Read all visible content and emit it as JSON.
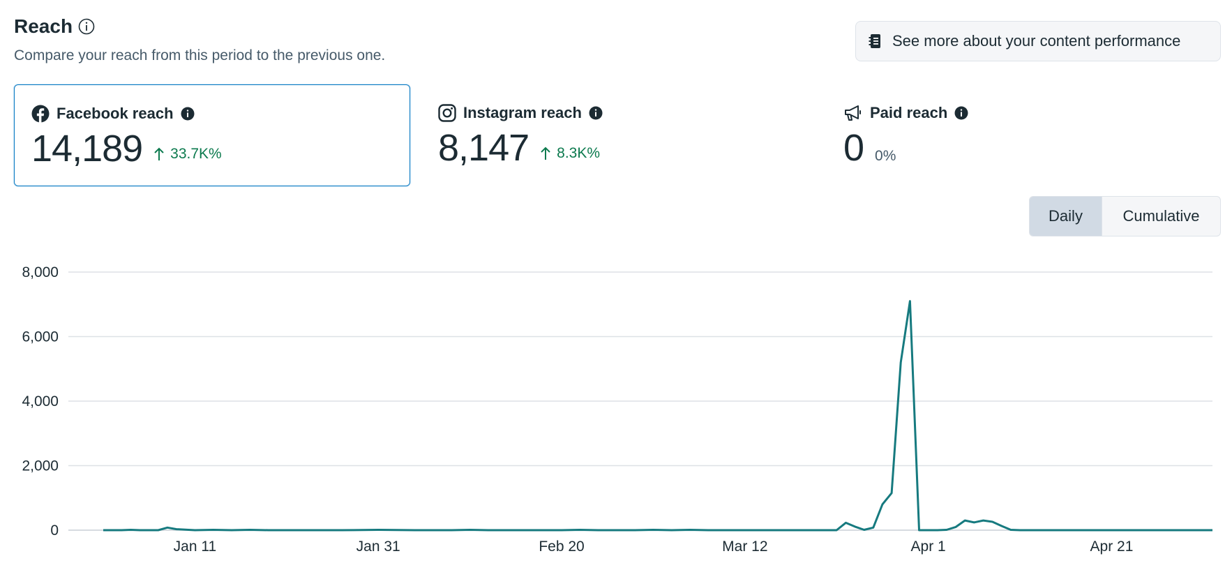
{
  "header": {
    "title": "Reach",
    "subtitle": "Compare your reach from this period to the previous one."
  },
  "more_button": {
    "label": "See more about your content performance",
    "icon": "notebook-icon"
  },
  "metrics": [
    {
      "label": "Facebook reach",
      "value": "14,189",
      "change": "33.7K%",
      "direction": "up",
      "icon": "facebook-icon",
      "selected": true
    },
    {
      "label": "Instagram reach",
      "value": "8,147",
      "change": "8.3K%",
      "direction": "up",
      "icon": "instagram-icon",
      "selected": false
    },
    {
      "label": "Paid reach",
      "value": "0",
      "change": "0%",
      "direction": "none",
      "icon": "megaphone-icon",
      "selected": false
    }
  ],
  "view_toggle": {
    "options": [
      "Daily",
      "Cumulative"
    ],
    "selected": "Daily"
  },
  "colors": {
    "line": "#167a7f",
    "selected_border": "#0a7ac2",
    "positive": "#0c7a4e"
  },
  "chart_data": {
    "type": "line",
    "title": "",
    "xlabel": "",
    "ylabel": "",
    "ylim": [
      0,
      8000
    ],
    "yticks": [
      "0",
      "2,000",
      "4,000",
      "6,000",
      "8,000"
    ],
    "ytick_values": [
      0,
      2000,
      4000,
      6000,
      8000
    ],
    "x_tick_labels": [
      "Jan 11",
      "Jan 31",
      "Feb 20",
      "Mar 12",
      "Apr 1",
      "Apr 21"
    ],
    "x_tick_days": [
      10,
      30,
      50,
      70,
      90,
      110
    ],
    "x_domain_days": [
      0,
      121
    ],
    "grid": true,
    "legend": "none",
    "series": [
      {
        "points": [
          [
            0,
            0
          ],
          [
            2,
            0
          ],
          [
            3,
            10
          ],
          [
            4,
            0
          ],
          [
            6,
            0
          ],
          [
            7,
            80
          ],
          [
            8,
            30
          ],
          [
            10,
            0
          ],
          [
            12,
            10
          ],
          [
            14,
            0
          ],
          [
            16,
            10
          ],
          [
            18,
            0
          ],
          [
            22,
            0
          ],
          [
            26,
            0
          ],
          [
            30,
            10
          ],
          [
            34,
            0
          ],
          [
            38,
            0
          ],
          [
            40,
            10
          ],
          [
            42,
            0
          ],
          [
            46,
            0
          ],
          [
            50,
            0
          ],
          [
            52,
            10
          ],
          [
            54,
            0
          ],
          [
            58,
            0
          ],
          [
            60,
            10
          ],
          [
            62,
            0
          ],
          [
            64,
            10
          ],
          [
            66,
            0
          ],
          [
            68,
            0
          ],
          [
            70,
            0
          ],
          [
            74,
            0
          ],
          [
            76,
            0
          ],
          [
            80,
            0
          ],
          [
            81,
            230
          ],
          [
            82,
            110
          ],
          [
            83,
            10
          ],
          [
            84,
            80
          ],
          [
            85,
            800
          ],
          [
            86,
            1150
          ],
          [
            87,
            5200
          ],
          [
            88,
            7100
          ],
          [
            89,
            0
          ],
          [
            91,
            0
          ],
          [
            92,
            10
          ],
          [
            93,
            100
          ],
          [
            94,
            300
          ],
          [
            95,
            240
          ],
          [
            96,
            300
          ],
          [
            97,
            260
          ],
          [
            98,
            130
          ],
          [
            99,
            10
          ],
          [
            100,
            0
          ],
          [
            102,
            0
          ],
          [
            106,
            0
          ],
          [
            108,
            0
          ],
          [
            110,
            0
          ],
          [
            112,
            0
          ],
          [
            114,
            0
          ],
          [
            116,
            0
          ],
          [
            118,
            0
          ],
          [
            121,
            0
          ]
        ]
      }
    ]
  }
}
